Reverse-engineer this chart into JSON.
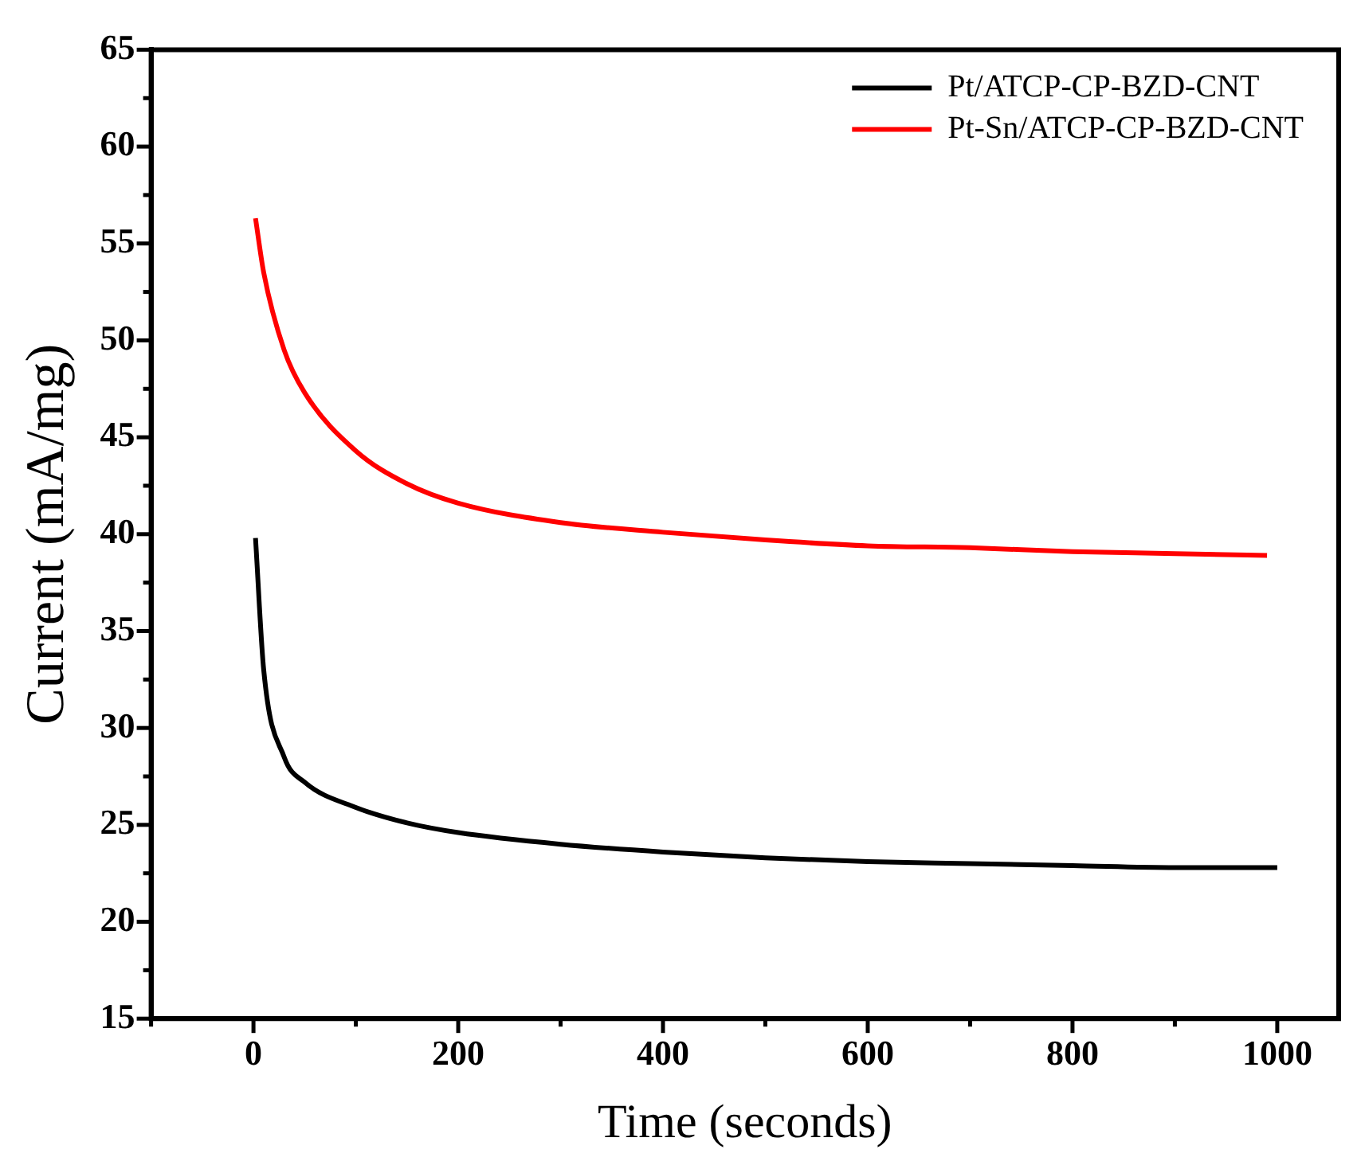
{
  "chart_data": {
    "type": "line",
    "xlabel": "Time (seconds)",
    "ylabel": "Current (mA/mg)",
    "xlim": [
      -100,
      1060
    ],
    "xticks": [
      {
        "value": -100,
        "label": null
      },
      0,
      {
        "value": 100,
        "label": null
      },
      200,
      {
        "value": 300,
        "label": null
      },
      400,
      {
        "value": 500,
        "label": null
      },
      600,
      {
        "value": 700,
        "label": null
      },
      800,
      {
        "value": 900,
        "label": null
      },
      1000
    ],
    "ylim": [
      15,
      65
    ],
    "yticks": [
      15,
      {
        "value": 17.5,
        "label": null
      },
      20,
      {
        "value": 22.5,
        "label": null
      },
      25,
      {
        "value": 27.5,
        "label": null
      },
      30,
      {
        "value": 32.5,
        "label": null
      },
      35,
      {
        "value": 37.5,
        "label": null
      },
      40,
      {
        "value": 42.5,
        "label": null
      },
      45,
      {
        "value": 47.5,
        "label": null
      },
      50,
      {
        "value": 52.5,
        "label": null
      },
      55,
      {
        "value": 57.5,
        "label": null
      },
      60,
      {
        "value": 62.5,
        "label": null
      },
      65
    ],
    "legend": "top right",
    "grid": false,
    "marker": "none",
    "line_style": "solid",
    "series": [
      {
        "name": "Pt/ATCP-CP-BZD-CNT",
        "color": "#000000",
        "x": [
          2,
          10,
          30,
          50,
          100,
          150,
          200,
          300,
          400,
          500,
          600,
          700,
          800,
          900,
          1000
        ],
        "values": [
          39.8,
          33,
          28.5,
          27.2,
          25.9,
          25.1,
          24.6,
          24.0,
          23.6,
          23.3,
          23.1,
          23.0,
          22.9,
          22.8,
          22.8
        ]
      },
      {
        "name": "Pt-Sn/ATCP-CP-BZD-CNT",
        "color": "#ff0000",
        "x": [
          2,
          10,
          30,
          50,
          100,
          150,
          200,
          300,
          400,
          500,
          600,
          700,
          800,
          900,
          990
        ],
        "values": [
          56.3,
          53.5,
          49.5,
          47.3,
          44.3,
          42.6,
          41.6,
          40.6,
          40.1,
          39.7,
          39.4,
          39.3,
          39.1,
          39.0,
          38.9
        ]
      }
    ]
  }
}
